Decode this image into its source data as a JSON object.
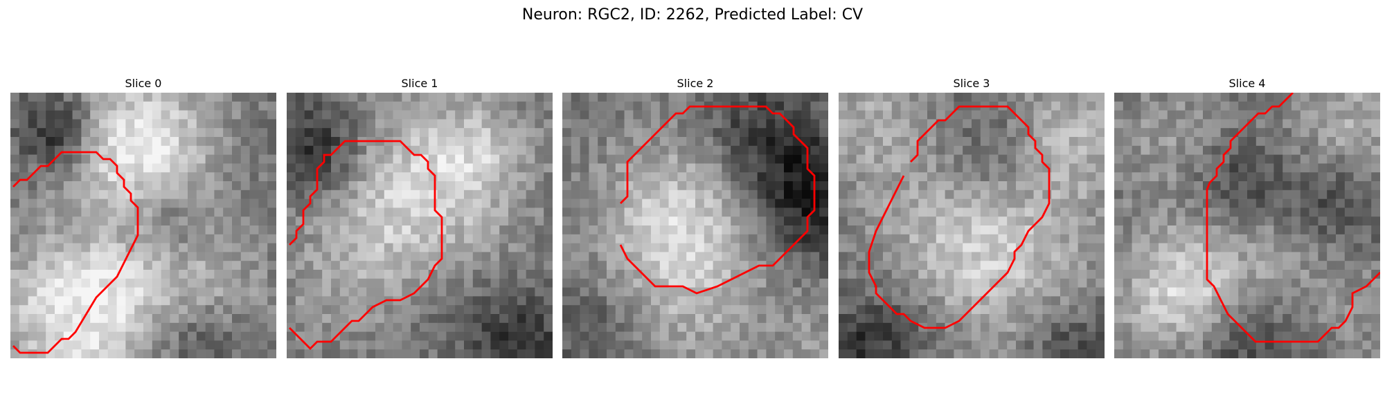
{
  "figure": {
    "title": "Neuron: RGC2, ID: 2262, Predicted Label: CV",
    "contour_color": "#ff0000",
    "colormap": "gray",
    "grid_size": 30
  },
  "slices": [
    {
      "title": "Slice 0"
    },
    {
      "title": "Slice 1"
    },
    {
      "title": "Slice 2"
    },
    {
      "title": "Slice 3"
    },
    {
      "title": "Slice 4"
    }
  ]
}
